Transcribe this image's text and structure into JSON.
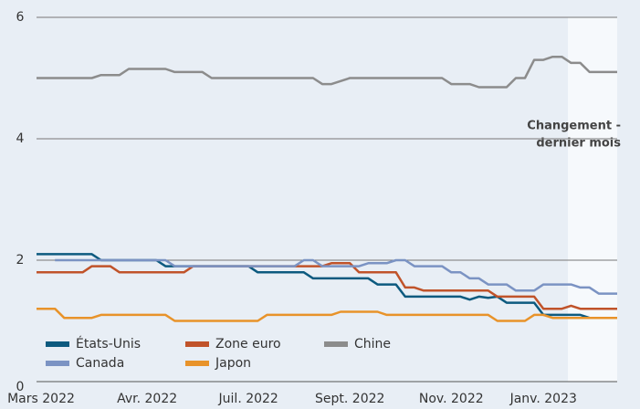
{
  "chart_data": {
    "type": "line",
    "categories": [
      "Mars 2022",
      null,
      null,
      null,
      null,
      null,
      null,
      null,
      null,
      null,
      null,
      null,
      "Avr. 2022",
      null,
      null,
      null,
      null,
      null,
      null,
      null,
      null,
      null,
      null,
      "Juil. 2022",
      null,
      null,
      null,
      null,
      null,
      null,
      null,
      null,
      null,
      null,
      "Sept. 2022",
      null,
      null,
      null,
      null,
      null,
      null,
      null,
      null,
      null,
      null,
      "Nov. 2022",
      null,
      null,
      null,
      null,
      null,
      null,
      null,
      null,
      null,
      "Janv. 2023",
      null,
      null,
      null,
      null,
      null,
      null,
      null,
      null
    ],
    "series": [
      {
        "name": "États-Unis",
        "color": "#0d5a7f",
        "values": [
          2.1,
          2.1,
          2.1,
          2.1,
          2.1,
          2.1,
          2.1,
          2.0,
          2.0,
          2.0,
          2.0,
          2.0,
          2.0,
          2.0,
          1.9,
          1.9,
          1.9,
          1.9,
          1.9,
          1.9,
          1.9,
          1.9,
          1.9,
          1.9,
          1.8,
          1.8,
          1.8,
          1.8,
          1.8,
          1.8,
          1.7,
          1.7,
          1.7,
          1.7,
          1.7,
          1.7,
          1.7,
          1.6,
          1.6,
          1.6,
          1.4,
          1.4,
          1.4,
          1.4,
          1.4,
          1.4,
          1.4,
          1.35,
          1.4,
          1.38,
          1.4,
          1.3,
          1.3,
          1.3,
          1.3,
          1.1,
          1.1,
          1.1,
          1.1,
          1.1,
          1.05,
          1.05,
          1.05,
          1.05
        ]
      },
      {
        "name": "Zone euro",
        "color": "#c0532a",
        "values": [
          1.8,
          1.8,
          1.8,
          1.8,
          1.8,
          1.8,
          1.9,
          1.9,
          1.9,
          1.8,
          1.8,
          1.8,
          1.8,
          1.8,
          1.8,
          1.8,
          1.8,
          1.9,
          1.9,
          1.9,
          1.9,
          1.9,
          1.9,
          1.9,
          1.9,
          1.9,
          1.9,
          1.9,
          1.9,
          1.9,
          1.9,
          1.9,
          1.95,
          1.95,
          1.95,
          1.8,
          1.8,
          1.8,
          1.8,
          1.8,
          1.55,
          1.55,
          1.5,
          1.5,
          1.5,
          1.5,
          1.5,
          1.5,
          1.5,
          1.5,
          1.4,
          1.4,
          1.4,
          1.4,
          1.4,
          1.2,
          1.2,
          1.2,
          1.25,
          1.2,
          1.2,
          1.2,
          1.2,
          1.2
        ]
      },
      {
        "name": "Chine",
        "color": "#8c8c8c",
        "values": [
          5.0,
          5.0,
          5.0,
          5.0,
          5.0,
          5.0,
          5.0,
          5.05,
          5.05,
          5.05,
          5.15,
          5.15,
          5.15,
          5.15,
          5.15,
          5.1,
          5.1,
          5.1,
          5.1,
          5.0,
          5.0,
          5.0,
          5.0,
          5.0,
          5.0,
          5.0,
          5.0,
          5.0,
          5.0,
          5.0,
          5.0,
          4.9,
          4.9,
          4.95,
          5.0,
          5.0,
          5.0,
          5.0,
          5.0,
          5.0,
          5.0,
          5.0,
          5.0,
          5.0,
          5.0,
          4.9,
          4.9,
          4.9,
          4.85,
          4.85,
          4.85,
          4.85,
          5.0,
          5.0,
          5.3,
          5.3,
          5.35,
          5.35,
          5.25,
          5.25,
          5.1,
          5.1,
          5.1,
          5.1
        ]
      },
      {
        "name": "Canada",
        "color": "#7b93c3",
        "values": [
          null,
          null,
          2.0,
          2.0,
          2.0,
          2.0,
          2.0,
          2.0,
          2.0,
          2.0,
          2.0,
          2.0,
          2.0,
          2.0,
          2.0,
          1.9,
          1.9,
          1.9,
          1.9,
          1.9,
          1.9,
          1.9,
          1.9,
          1.9,
          1.9,
          1.9,
          1.9,
          1.9,
          1.9,
          2.0,
          2.0,
          1.9,
          1.9,
          1.9,
          1.9,
          1.9,
          1.95,
          1.95,
          1.95,
          2.0,
          2.0,
          1.9,
          1.9,
          1.9,
          1.9,
          1.8,
          1.8,
          1.7,
          1.7,
          1.6,
          1.6,
          1.6,
          1.5,
          1.5,
          1.5,
          1.6,
          1.6,
          1.6,
          1.6,
          1.55,
          1.55,
          1.45,
          1.45,
          1.45
        ]
      },
      {
        "name": "Japon",
        "color": "#e8932a",
        "values": [
          1.2,
          1.2,
          1.2,
          1.05,
          1.05,
          1.05,
          1.05,
          1.1,
          1.1,
          1.1,
          1.1,
          1.1,
          1.1,
          1.1,
          1.1,
          1.0,
          1.0,
          1.0,
          1.0,
          1.0,
          1.0,
          1.0,
          1.0,
          1.0,
          1.0,
          1.1,
          1.1,
          1.1,
          1.1,
          1.1,
          1.1,
          1.1,
          1.1,
          1.15,
          1.15,
          1.15,
          1.15,
          1.15,
          1.1,
          1.1,
          1.1,
          1.1,
          1.1,
          1.1,
          1.1,
          1.1,
          1.1,
          1.1,
          1.1,
          1.1,
          1.0,
          1.0,
          1.0,
          1.0,
          1.1,
          1.1,
          1.05,
          1.05,
          1.05,
          1.05,
          1.05,
          1.05,
          1.05,
          1.05
        ]
      }
    ],
    "ylim": [
      0,
      6
    ],
    "yticks": [
      0,
      2,
      4,
      6
    ],
    "grid": true,
    "annotation": [
      "Changement -",
      "dernier mois"
    ]
  }
}
